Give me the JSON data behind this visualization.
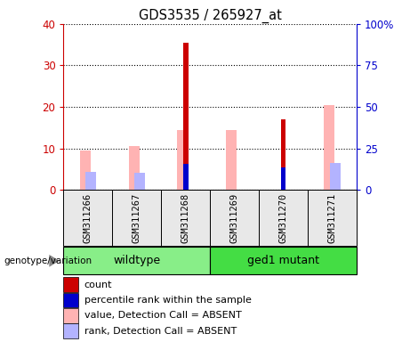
{
  "title": "GDS3535 / 265927_at",
  "samples": [
    "GSM311266",
    "GSM311267",
    "GSM311268",
    "GSM311269",
    "GSM311270",
    "GSM311271"
  ],
  "count_values": [
    0,
    0,
    35.5,
    0,
    17.0,
    0
  ],
  "percentile_rank_values": [
    0,
    0,
    15.5,
    0,
    13.5,
    0
  ],
  "absent_value_values": [
    9.5,
    10.5,
    14.5,
    14.5,
    0,
    20.5
  ],
  "absent_rank_values": [
    11,
    10.5,
    0,
    0,
    0,
    16
  ],
  "ylim_left": [
    0,
    40
  ],
  "ylim_right": [
    0,
    100
  ],
  "yticks_left": [
    0,
    10,
    20,
    30,
    40
  ],
  "yticks_right": [
    0,
    25,
    50,
    75,
    100
  ],
  "ytick_labels_right": [
    "0",
    "25",
    "50",
    "75",
    "100%"
  ],
  "left_axis_color": "#cc0000",
  "right_axis_color": "#0000cc",
  "count_color": "#cc0000",
  "percentile_color": "#0000cc",
  "absent_value_color": "#ffb3b3",
  "absent_rank_color": "#b3b3ff",
  "legend_labels": [
    "count",
    "percentile rank within the sample",
    "value, Detection Call = ABSENT",
    "rank, Detection Call = ABSENT"
  ],
  "legend_colors": [
    "#cc0000",
    "#0000cc",
    "#ffb3b3",
    "#b3b3ff"
  ],
  "group_defs": [
    [
      0,
      2,
      "wildtype",
      "#88ee88"
    ],
    [
      3,
      5,
      "ged1 mutant",
      "#44dd44"
    ]
  ],
  "bg_color": "#e8e8e8",
  "plot_bg": "#f0f0f0"
}
